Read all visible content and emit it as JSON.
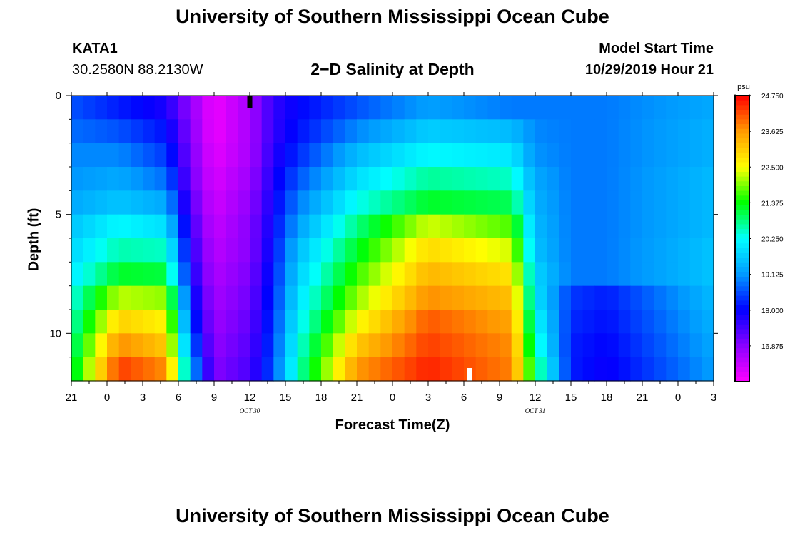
{
  "header": {
    "title_top": "University of Southern Mississippi Ocean Cube",
    "station_id": "KATA1",
    "station_coords": "30.2580N 88.2130W",
    "chart_title": "2−D Salinity at Depth",
    "model_label": "Model Start Time",
    "model_time": "10/29/2019 Hour 21"
  },
  "footer": {
    "title_bottom": "University of Southern Mississippi Ocean Cube"
  },
  "chart_data": {
    "type": "heatmap",
    "xlabel": "Forecast Time(Z)",
    "ylabel": "Depth (ft)",
    "x_tick_labels": [
      "21",
      "0",
      "3",
      "6",
      "9",
      "12",
      "15",
      "18",
      "21",
      "0",
      "3",
      "6",
      "9",
      "12",
      "15",
      "18",
      "21",
      "0",
      "3"
    ],
    "x_day_labels": [
      {
        "label": "OCT 30",
        "at_tick_index": 5
      },
      {
        "label": "OCT 31",
        "at_tick_index": 13
      }
    ],
    "x_range_hours": [
      0,
      54
    ],
    "y_tick_labels": [
      "0",
      "5",
      "10"
    ],
    "ylim": [
      12,
      0
    ],
    "colorbar": {
      "unit": "psu",
      "min": 15.75,
      "max": 24.75,
      "tick_labels": [
        "24.750",
        "23.625",
        "22.500",
        "21.375",
        "20.250",
        "19.125",
        "18.000",
        "16.875"
      ],
      "colors": [
        "#ff00ff",
        "#8a00ff",
        "#0000ff",
        "#0099ff",
        "#00ffff",
        "#00ff00",
        "#ffff00",
        "#ff9900",
        "#ff0000"
      ]
    },
    "depth_levels_ft": [
      0.5,
      1.5,
      2.5,
      3.5,
      4.5,
      5.5,
      6.5,
      7.5,
      8.5,
      9.5,
      10.5,
      11.5
    ],
    "profile_anchors_hours": [
      0,
      4,
      8,
      10,
      12,
      15,
      17,
      19,
      24,
      30,
      37,
      39,
      42,
      45,
      54
    ],
    "profile_values_psu": [
      [
        18.6,
        18.2,
        17.8,
        16.8,
        15.9,
        16.6,
        17.6,
        18.0,
        18.6,
        19.2,
        18.9,
        18.9,
        18.9,
        18.9,
        19.3
      ],
      [
        18.8,
        18.6,
        18.1,
        16.9,
        15.9,
        16.6,
        17.6,
        18.1,
        19.0,
        19.7,
        19.5,
        19.0,
        18.9,
        18.9,
        19.4
      ],
      [
        19.0,
        19.0,
        18.4,
        17.0,
        16.0,
        16.6,
        17.7,
        18.3,
        19.5,
        20.2,
        20.0,
        19.1,
        18.9,
        18.9,
        19.4
      ],
      [
        19.1,
        19.3,
        18.8,
        17.1,
        16.1,
        16.7,
        17.8,
        18.6,
        19.9,
        20.7,
        20.5,
        19.3,
        18.9,
        18.9,
        19.5
      ],
      [
        19.3,
        19.6,
        19.3,
        17.3,
        16.2,
        16.8,
        17.9,
        18.9,
        20.3,
        21.2,
        21.0,
        19.4,
        18.9,
        18.9,
        19.5
      ],
      [
        19.6,
        20.2,
        19.9,
        17.5,
        16.3,
        16.9,
        18.0,
        19.2,
        20.8,
        22.3,
        21.7,
        19.5,
        18.9,
        18.9,
        19.5
      ],
      [
        19.8,
        20.6,
        20.5,
        17.7,
        16.4,
        16.9,
        18.1,
        19.5,
        21.2,
        22.9,
        22.3,
        19.6,
        18.9,
        18.9,
        19.6
      ],
      [
        20.0,
        21.2,
        21.1,
        17.9,
        16.5,
        17.0,
        18.2,
        19.7,
        21.6,
        23.3,
        22.8,
        19.8,
        18.9,
        18.9,
        19.6
      ],
      [
        20.3,
        22.2,
        22.0,
        18.2,
        16.6,
        17.1,
        18.3,
        19.9,
        22.0,
        23.7,
        23.2,
        20.0,
        18.4,
        18.2,
        19.5
      ],
      [
        20.5,
        23.0,
        22.6,
        18.5,
        16.7,
        17.2,
        18.4,
        20.1,
        22.5,
        24.1,
        23.5,
        20.3,
        18.3,
        18.1,
        19.4
      ],
      [
        20.7,
        23.7,
        23.1,
        18.9,
        16.8,
        17.3,
        18.5,
        20.3,
        23.1,
        24.3,
        23.7,
        20.6,
        18.2,
        18.0,
        19.3
      ],
      [
        20.9,
        24.3,
        23.7,
        19.4,
        16.9,
        17.4,
        18.6,
        20.5,
        23.6,
        24.5,
        23.8,
        21.0,
        18.2,
        17.9,
        19.2
      ]
    ],
    "markers": [
      {
        "color": "#000000",
        "time_hours": 15,
        "depth": "top"
      },
      {
        "color": "#ffffff",
        "time_hours": 33.5,
        "depth": "bottom"
      }
    ]
  }
}
